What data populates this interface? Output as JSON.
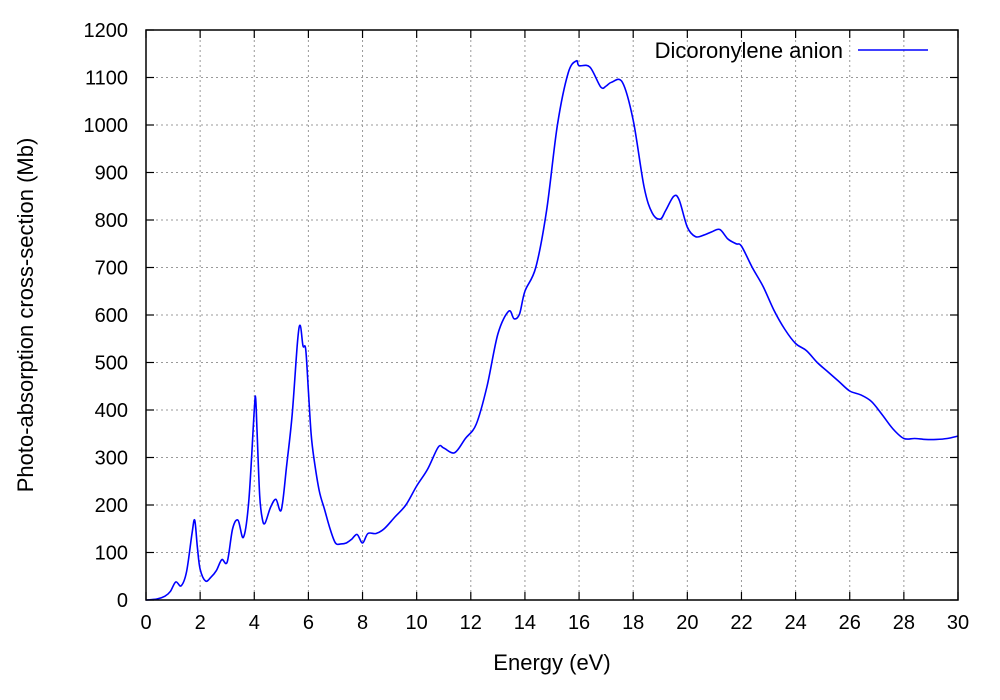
{
  "chart_data": {
    "type": "line",
    "title": "",
    "xlabel": "Energy (eV)",
    "ylabel": "Photo-absorption cross-section (Mb)",
    "xlim": [
      0,
      30
    ],
    "ylim": [
      0,
      1200
    ],
    "xticks": [
      0,
      2,
      4,
      6,
      8,
      10,
      12,
      14,
      16,
      18,
      20,
      22,
      24,
      26,
      28,
      30
    ],
    "yticks": [
      0,
      100,
      200,
      300,
      400,
      500,
      600,
      700,
      800,
      900,
      1000,
      1100,
      1200
    ],
    "grid": true,
    "legend_position": "top-right",
    "series": [
      {
        "name": "Dicoronylene anion",
        "color": "#0000ff",
        "x": [
          0,
          0.4,
          0.7,
          0.9,
          1.1,
          1.3,
          1.5,
          1.7,
          1.8,
          1.9,
          2.0,
          2.2,
          2.4,
          2.6,
          2.8,
          3.0,
          3.2,
          3.4,
          3.6,
          3.8,
          4.0,
          4.05,
          4.1,
          4.2,
          4.3,
          4.4,
          4.6,
          4.8,
          5.0,
          5.2,
          5.4,
          5.6,
          5.7,
          5.8,
          5.9,
          6.0,
          6.1,
          6.2,
          6.4,
          6.6,
          6.8,
          7.0,
          7.2,
          7.4,
          7.6,
          7.8,
          8.0,
          8.2,
          8.5,
          8.8,
          9.2,
          9.6,
          10.0,
          10.4,
          10.8,
          11.0,
          11.4,
          11.8,
          12.2,
          12.6,
          13.0,
          13.4,
          13.6,
          13.8,
          14.0,
          14.4,
          14.8,
          15.2,
          15.6,
          15.9,
          16.0,
          16.4,
          16.8,
          17.0,
          17.2,
          17.6,
          18.0,
          18.4,
          18.7,
          19.0,
          19.2,
          19.5,
          19.7,
          20.0,
          20.3,
          20.6,
          20.9,
          21.2,
          21.5,
          21.8,
          22.0,
          22.4,
          22.8,
          23.2,
          23.6,
          24.0,
          24.4,
          24.8,
          25.2,
          25.6,
          26.0,
          26.4,
          26.8,
          27.2,
          27.6,
          28.0,
          28.4,
          28.8,
          29.2,
          29.6,
          30.0
        ],
        "values": [
          0,
          2,
          8,
          18,
          38,
          30,
          60,
          140,
          168,
          110,
          65,
          40,
          48,
          62,
          85,
          80,
          150,
          168,
          132,
          210,
          400,
          425,
          360,
          220,
          170,
          162,
          195,
          212,
          190,
          285,
          390,
          545,
          578,
          535,
          528,
          440,
          350,
          300,
          230,
          190,
          150,
          120,
          118,
          120,
          128,
          138,
          120,
          140,
          140,
          150,
          175,
          200,
          240,
          275,
          322,
          320,
          310,
          340,
          370,
          450,
          560,
          608,
          592,
          602,
          650,
          700,
          820,
          1000,
          1110,
          1135,
          1125,
          1122,
          1080,
          1082,
          1090,
          1090,
          1010,
          870,
          815,
          802,
          820,
          850,
          842,
          785,
          765,
          768,
          775,
          780,
          760,
          750,
          745,
          700,
          660,
          610,
          570,
          540,
          525,
          500,
          480,
          460,
          440,
          432,
          418,
          390,
          360,
          340,
          340,
          338,
          338,
          340,
          345
        ]
      }
    ]
  }
}
